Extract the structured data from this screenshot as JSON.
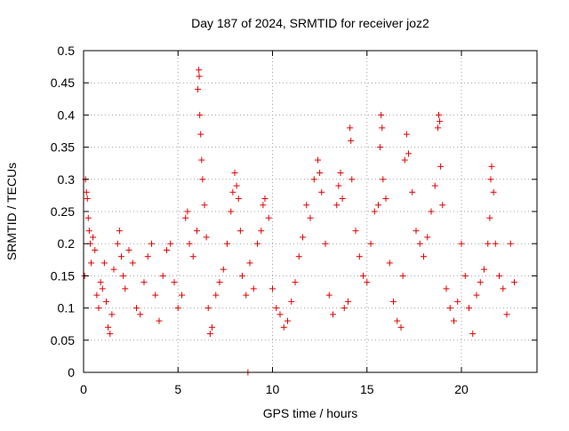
{
  "chart_data": {
    "type": "scatter",
    "title": "Day 187 of 2024, SRMTID for receiver joz2",
    "xlabel": "GPS time / hours",
    "ylabel": "SRMTID / TECUs",
    "xlim": [
      0,
      24
    ],
    "ylim": [
      0,
      0.5
    ],
    "x_ticks": [
      0,
      5,
      10,
      15,
      20
    ],
    "x_tick_labels": [
      "0",
      "5",
      "10",
      "15",
      "20"
    ],
    "y_ticks": [
      0,
      0.05,
      0.1,
      0.15,
      0.2,
      0.25,
      0.3,
      0.35,
      0.4,
      0.45,
      0.5
    ],
    "y_tick_labels": [
      "0",
      "0.05",
      "0.1",
      "0.15",
      "0.2",
      "0.25",
      "0.3",
      "0.35",
      "0.4",
      "0.45",
      "0.5"
    ],
    "grid": true,
    "marker": "+",
    "color": "#e00000",
    "series": [
      {
        "name": "SRMTID",
        "points": [
          [
            0.05,
            0.15
          ],
          [
            0.1,
            0.3
          ],
          [
            0.15,
            0.28
          ],
          [
            0.2,
            0.27
          ],
          [
            0.25,
            0.24
          ],
          [
            0.3,
            0.22
          ],
          [
            0.35,
            0.2
          ],
          [
            0.4,
            0.17
          ],
          [
            0.5,
            0.21
          ],
          [
            0.6,
            0.19
          ],
          [
            0.7,
            0.12
          ],
          [
            0.8,
            0.1
          ],
          [
            0.9,
            0.14
          ],
          [
            1.0,
            0.13
          ],
          [
            1.1,
            0.17
          ],
          [
            1.2,
            0.11
          ],
          [
            1.3,
            0.07
          ],
          [
            1.4,
            0.06
          ],
          [
            1.5,
            0.09
          ],
          [
            1.6,
            0.16
          ],
          [
            1.8,
            0.2
          ],
          [
            1.9,
            0.22
          ],
          [
            2.0,
            0.18
          ],
          [
            2.1,
            0.15
          ],
          [
            2.2,
            0.13
          ],
          [
            2.4,
            0.19
          ],
          [
            2.6,
            0.17
          ],
          [
            2.8,
            0.1
          ],
          [
            3.0,
            0.09
          ],
          [
            3.2,
            0.14
          ],
          [
            3.4,
            0.18
          ],
          [
            3.6,
            0.2
          ],
          [
            3.8,
            0.12
          ],
          [
            4.0,
            0.08
          ],
          [
            4.2,
            0.15
          ],
          [
            4.4,
            0.19
          ],
          [
            4.6,
            0.2
          ],
          [
            4.8,
            0.14
          ],
          [
            5.0,
            0.1
          ],
          [
            5.2,
            0.12
          ],
          [
            5.4,
            0.24
          ],
          [
            5.5,
            0.25
          ],
          [
            5.6,
            0.2
          ],
          [
            5.8,
            0.18
          ],
          [
            6.0,
            0.22
          ],
          [
            6.05,
            0.44
          ],
          [
            6.1,
            0.47
          ],
          [
            6.12,
            0.46
          ],
          [
            6.15,
            0.4
          ],
          [
            6.2,
            0.37
          ],
          [
            6.25,
            0.33
          ],
          [
            6.3,
            0.3
          ],
          [
            6.4,
            0.26
          ],
          [
            6.5,
            0.21
          ],
          [
            6.6,
            0.1
          ],
          [
            6.7,
            0.06
          ],
          [
            6.8,
            0.07
          ],
          [
            7.0,
            0.12
          ],
          [
            7.2,
            0.14
          ],
          [
            7.4,
            0.16
          ],
          [
            7.6,
            0.2
          ],
          [
            7.8,
            0.25
          ],
          [
            7.9,
            0.28
          ],
          [
            8.0,
            0.31
          ],
          [
            8.1,
            0.29
          ],
          [
            8.2,
            0.27
          ],
          [
            8.3,
            0.22
          ],
          [
            8.4,
            0.15
          ],
          [
            8.6,
            0.12
          ],
          [
            8.8,
            0.17
          ],
          [
            9.0,
            0.13
          ],
          [
            9.2,
            0.2
          ],
          [
            9.4,
            0.22
          ],
          [
            9.5,
            0.26
          ],
          [
            9.6,
            0.27
          ],
          [
            9.8,
            0.24
          ],
          [
            10.0,
            0.13
          ],
          [
            10.2,
            0.1
          ],
          [
            10.4,
            0.09
          ],
          [
            10.6,
            0.07
          ],
          [
            10.8,
            0.08
          ],
          [
            11.0,
            0.11
          ],
          [
            11.2,
            0.14
          ],
          [
            11.4,
            0.18
          ],
          [
            11.6,
            0.21
          ],
          [
            11.8,
            0.26
          ],
          [
            12.0,
            0.24
          ],
          [
            12.2,
            0.3
          ],
          [
            12.4,
            0.33
          ],
          [
            12.5,
            0.31
          ],
          [
            12.6,
            0.28
          ],
          [
            12.8,
            0.2
          ],
          [
            13.0,
            0.12
          ],
          [
            13.2,
            0.09
          ],
          [
            13.4,
            0.26
          ],
          [
            13.5,
            0.29
          ],
          [
            13.6,
            0.31
          ],
          [
            13.7,
            0.27
          ],
          [
            13.8,
            0.1
          ],
          [
            14.0,
            0.11
          ],
          [
            14.1,
            0.38
          ],
          [
            14.15,
            0.36
          ],
          [
            14.2,
            0.3
          ],
          [
            14.4,
            0.22
          ],
          [
            14.6,
            0.18
          ],
          [
            14.8,
            0.15
          ],
          [
            15.0,
            0.14
          ],
          [
            15.2,
            0.2
          ],
          [
            15.4,
            0.25
          ],
          [
            15.6,
            0.26
          ],
          [
            15.7,
            0.35
          ],
          [
            15.75,
            0.4
          ],
          [
            15.8,
            0.38
          ],
          [
            15.85,
            0.3
          ],
          [
            16.0,
            0.27
          ],
          [
            16.2,
            0.17
          ],
          [
            16.4,
            0.11
          ],
          [
            16.6,
            0.08
          ],
          [
            16.8,
            0.07
          ],
          [
            16.9,
            0.15
          ],
          [
            17.0,
            0.33
          ],
          [
            17.1,
            0.37
          ],
          [
            17.2,
            0.34
          ],
          [
            17.4,
            0.28
          ],
          [
            17.6,
            0.22
          ],
          [
            17.8,
            0.2
          ],
          [
            18.0,
            0.18
          ],
          [
            18.2,
            0.21
          ],
          [
            18.4,
            0.25
          ],
          [
            18.6,
            0.29
          ],
          [
            18.75,
            0.38
          ],
          [
            18.8,
            0.4
          ],
          [
            18.85,
            0.39
          ],
          [
            18.9,
            0.32
          ],
          [
            19.0,
            0.26
          ],
          [
            19.2,
            0.13
          ],
          [
            19.4,
            0.1
          ],
          [
            19.6,
            0.08
          ],
          [
            19.8,
            0.11
          ],
          [
            20.0,
            0.2
          ],
          [
            20.2,
            0.15
          ],
          [
            20.4,
            0.1
          ],
          [
            20.6,
            0.06
          ],
          [
            20.8,
            0.12
          ],
          [
            21.0,
            0.14
          ],
          [
            21.2,
            0.16
          ],
          [
            21.4,
            0.2
          ],
          [
            21.5,
            0.24
          ],
          [
            21.55,
            0.3
          ],
          [
            21.6,
            0.32
          ],
          [
            21.7,
            0.28
          ],
          [
            21.8,
            0.2
          ],
          [
            22.0,
            0.15
          ],
          [
            22.2,
            0.13
          ],
          [
            22.4,
            0.09
          ],
          [
            22.6,
            0.2
          ],
          [
            22.8,
            0.14
          ],
          [
            8.7,
            0.0
          ]
        ]
      }
    ]
  }
}
